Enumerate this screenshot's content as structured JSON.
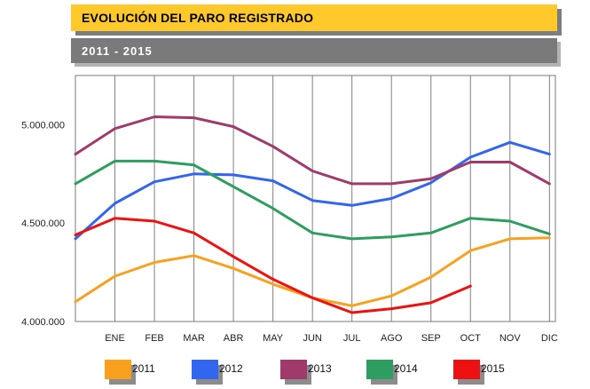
{
  "header": {
    "title": "EVOLUCIÓN DEL PARO REGISTRADO",
    "subtitle": "2011  -  2015"
  },
  "colors": {
    "title_bar": "#ffc82b",
    "subtitle_bar": "#7a7a7a"
  },
  "chart_data": {
    "type": "line",
    "categories": [
      "ENE",
      "FEB",
      "MAR",
      "ABR",
      "MAY",
      "JUN",
      "JUL",
      "AGO",
      "SEP",
      "OCT",
      "NOV",
      "DIC"
    ],
    "ylim": [
      4000000,
      5250000
    ],
    "yticks": [
      4000000,
      4500000,
      5000000
    ],
    "ytick_labels": [
      "4.000.000",
      "4.500.000",
      "5.000.000"
    ],
    "grid": "vertical",
    "legend_position": "bottom",
    "series": [
      {
        "name": "2011",
        "color": "#f7a11e",
        "start": 4100000,
        "values": [
          4230000,
          4300000,
          4335000,
          4270000,
          4190000,
          4120000,
          4080000,
          4130000,
          4225000,
          4360000,
          4420000,
          4425000
        ]
      },
      {
        "name": "2012",
        "color": "#3366ee",
        "start": 4420000,
        "values": [
          4600000,
          4710000,
          4750000,
          4745000,
          4715000,
          4615000,
          4590000,
          4625000,
          4705000,
          4835000,
          4910000,
          4850000
        ]
      },
      {
        "name": "2013",
        "color": "#a03a6a",
        "start": 4850000,
        "values": [
          4980000,
          5040000,
          5035000,
          4990000,
          4890000,
          4765000,
          4700000,
          4700000,
          4725000,
          4810000,
          4810000,
          4700000
        ]
      },
      {
        "name": "2014",
        "color": "#2e9e60",
        "start": 4700000,
        "values": [
          4815000,
          4815000,
          4795000,
          4685000,
          4575000,
          4450000,
          4420000,
          4430000,
          4450000,
          4525000,
          4510000,
          4445000
        ]
      },
      {
        "name": "2015",
        "color": "#ee1111",
        "start": 4440000,
        "values": [
          4525000,
          4510000,
          4450000,
          4330000,
          4215000,
          4120000,
          4045000,
          4065000,
          4095000,
          4180000,
          null,
          null
        ]
      }
    ]
  }
}
